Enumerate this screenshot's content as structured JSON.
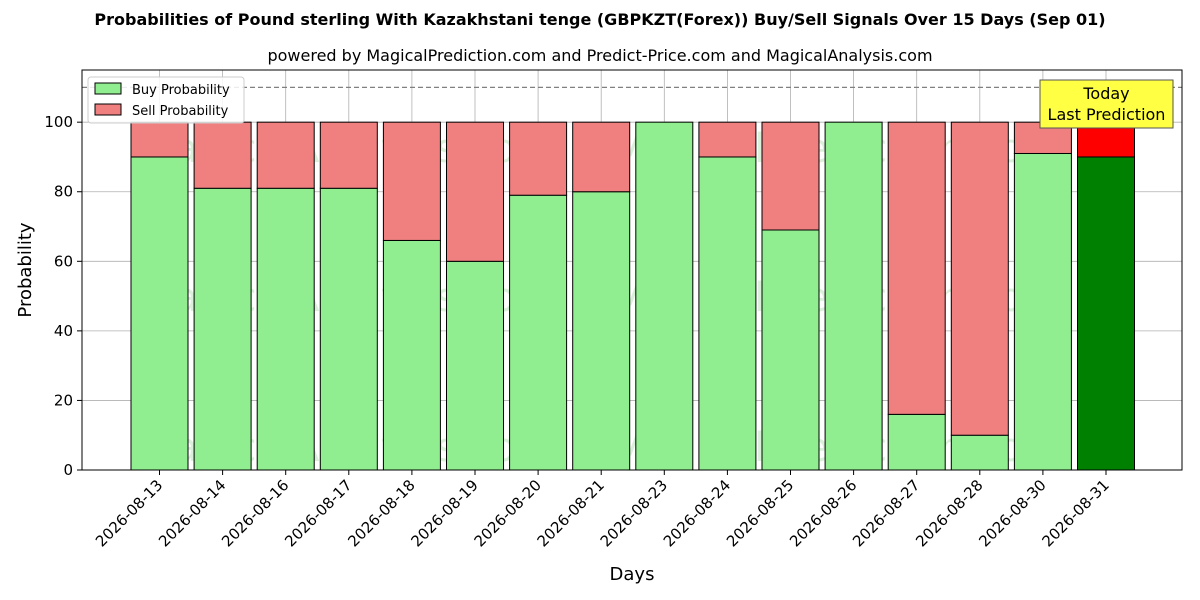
{
  "title": "Probabilities of Pound sterling With Kazakhstani tenge (GBPKZT(Forex)) Buy/Sell Signals Over 15 Days (Sep 01)",
  "subtitle": "powered by MagicalPrediction.com and Predict-Price.com and MagicalAnalysis.com",
  "watermarks": [
    "MagicalAnalysis.com",
    "MagicalPrediction.com"
  ],
  "today_box": {
    "line1": "Today",
    "line2": "Last Prediction"
  },
  "colors": {
    "buy": "#90ee90",
    "sell": "#f08080",
    "buy_today": "#008000",
    "sell_today": "#ff0000",
    "today_box": "#ffff44"
  },
  "chart_data": {
    "type": "bar",
    "stacked": true,
    "categories": [
      "2026-08-13",
      "2026-08-14",
      "2026-08-16",
      "2026-08-17",
      "2026-08-18",
      "2026-08-19",
      "2026-08-20",
      "2026-08-21",
      "2026-08-23",
      "2026-08-24",
      "2026-08-25",
      "2026-08-26",
      "2026-08-27",
      "2026-08-28",
      "2026-08-30",
      "2026-08-31"
    ],
    "series": [
      {
        "name": "Buy Probability",
        "values": [
          90,
          81,
          81,
          81,
          66,
          60,
          79,
          80,
          100,
          90,
          69,
          100,
          16,
          10,
          91,
          90
        ]
      },
      {
        "name": "Sell Probability",
        "values": [
          10,
          19,
          19,
          19,
          34,
          40,
          21,
          20,
          0,
          10,
          31,
          0,
          84,
          90,
          9,
          10
        ]
      }
    ],
    "xlabel": "Days",
    "ylabel": "Probability",
    "ylim": [
      0,
      115
    ],
    "yticks": [
      0,
      20,
      40,
      60,
      80,
      100
    ],
    "reference_line": 110,
    "grid": true,
    "legend_position": "top-left",
    "highlight_last": true
  }
}
